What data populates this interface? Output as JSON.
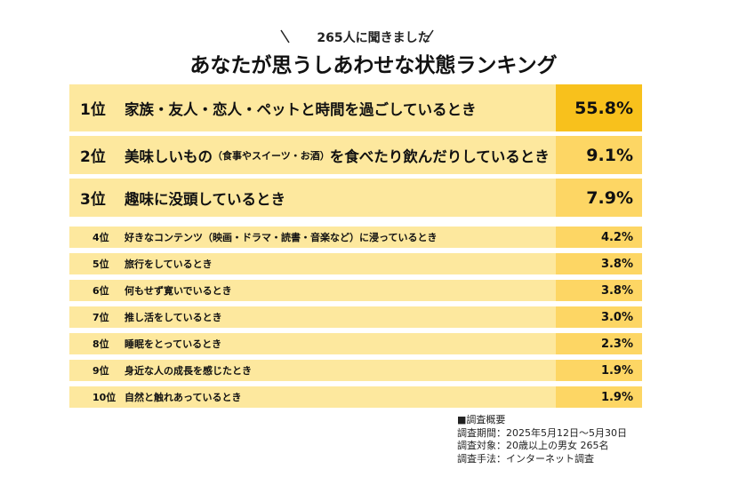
{
  "header": {
    "subtitle": "265人に聞きました",
    "title": "あなたが思うしあわせな状態ランキング"
  },
  "table": {
    "rows": [
      {
        "rank": "1位",
        "label": "家族・友人・恋人・ペットと時間を過ごしているとき",
        "value": "55.8%"
      },
      {
        "rank": "2位",
        "label": "美味しいもの",
        "note": "（食事やスイーツ・お酒）",
        "label_after": "を食べたり飲んだりしているとき",
        "value": "9.1%"
      },
      {
        "rank": "3位",
        "label": "趣味に没頭しているとき",
        "value": "7.9%"
      },
      {
        "rank": "4位",
        "label": "好きなコンテンツ（映画・ドラマ・読書・音楽など）に浸っているとき",
        "value": "4.2%"
      },
      {
        "rank": "5位",
        "label": "旅行をしているとき",
        "value": "3.8%"
      },
      {
        "rank": "6位",
        "label": "何もせず寛いでいるとき",
        "value": "3.8%"
      },
      {
        "rank": "7位",
        "label": "推し活をしているとき",
        "value": "3.0%"
      },
      {
        "rank": "8位",
        "label": "睡眠をとっているとき",
        "value": "2.3%"
      },
      {
        "rank": "9位",
        "label": "身近な人の成長を感じたとき",
        "value": "1.9%"
      },
      {
        "rank": "10位",
        "label": "自然と触れあっているとき",
        "value": "1.9%"
      }
    ]
  },
  "notes": {
    "heading": "■調査概要",
    "lines": [
      "調査期間：2025年5月12日～5月30日",
      "調査対象：20歳以上の男女 265名",
      "調査手法：インターネット調査"
    ]
  }
}
